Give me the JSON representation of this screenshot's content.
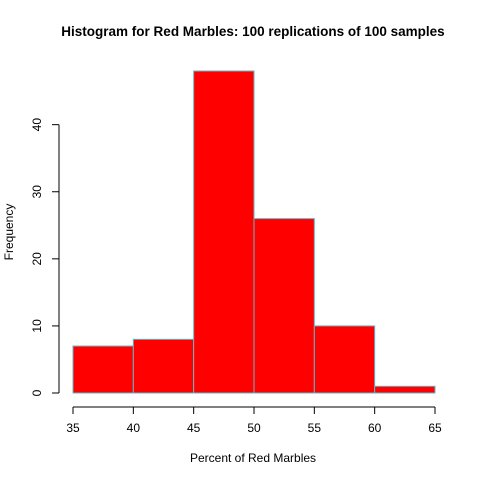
{
  "chart_data": {
    "type": "bar",
    "title": "Histogram for Red Marbles: 100 replications of 100 samples",
    "xlabel": "Percent of Red Marbles",
    "ylabel": "Frequency",
    "bins": [
      {
        "from": 35,
        "to": 40,
        "count": 7
      },
      {
        "from": 40,
        "to": 45,
        "count": 8
      },
      {
        "from": 45,
        "to": 50,
        "count": 48
      },
      {
        "from": 50,
        "to": 55,
        "count": 26
      },
      {
        "from": 55,
        "to": 60,
        "count": 10
      },
      {
        "from": 60,
        "to": 65,
        "count": 1
      }
    ],
    "x_ticks": [
      "35",
      "40",
      "45",
      "50",
      "55",
      "60",
      "65"
    ],
    "y_ticks": [
      "0",
      "10",
      "20",
      "30",
      "40"
    ],
    "xlim": [
      35,
      65
    ],
    "ylim": [
      0,
      48
    ],
    "grid": false,
    "bar_fill": "#ff0000",
    "bar_border": "#5fb8c9"
  }
}
